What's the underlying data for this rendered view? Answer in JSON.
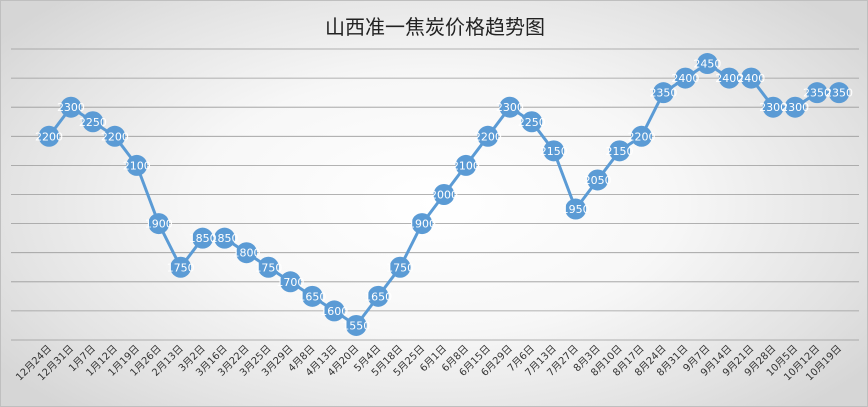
{
  "chart_data": {
    "type": "line",
    "title": "山西准一焦炭价格趋势图",
    "categories": [
      "12月24日",
      "12月31日",
      "1月7日",
      "1月12日",
      "1月19日",
      "1月26日",
      "2月13日",
      "3月2日",
      "3月16日",
      "3月22日",
      "3月25日",
      "3月29日",
      "4月8日",
      "4月13日",
      "4月20日",
      "5月4日",
      "5月18日",
      "5月25日",
      "6月1日",
      "6月8日",
      "6月15日",
      "6月29日",
      "7月6日",
      "7月13日",
      "7月27日",
      "8月3日",
      "8月10日",
      "8月17日",
      "8月24日",
      "8月31日",
      "9月7日",
      "9月14日",
      "9月21日",
      "9月28日",
      "10月5日",
      "10月12日",
      "10月19日"
    ],
    "series": [
      {
        "values": [
          2200,
          2300,
          2250,
          2200,
          2100,
          1900,
          1750,
          1850,
          1850,
          1800,
          1750,
          1700,
          1650,
          1600,
          1550,
          1650,
          1750,
          1900,
          2000,
          2100,
          2200,
          2300,
          2250,
          2150,
          1950,
          2050,
          2150,
          2200,
          2350,
          2400,
          2450,
          2400,
          2400,
          2300,
          2300,
          2350,
          2350
        ]
      }
    ],
    "ylim": [
      1500,
      2500
    ],
    "grid": true,
    "legend": "none",
    "line_color": "#5b9bd5"
  }
}
